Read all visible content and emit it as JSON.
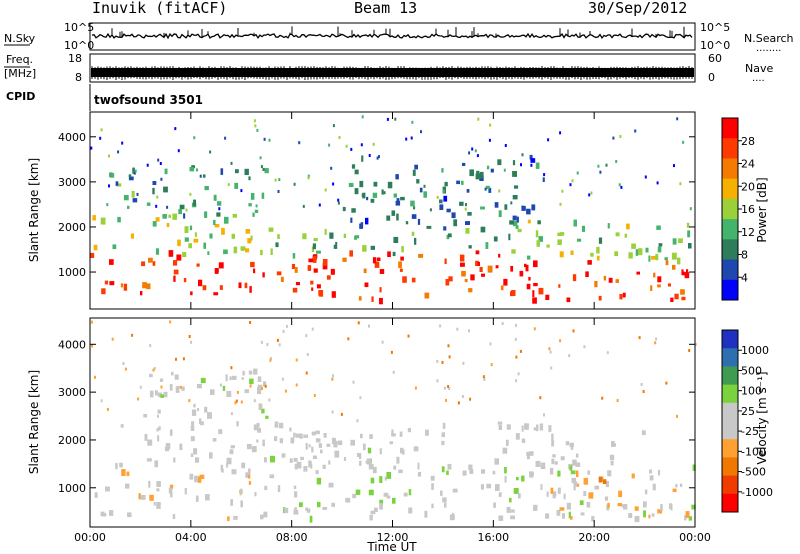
{
  "header": {
    "station": "Inuvik (fitACF)",
    "beam": "Beam 13",
    "date": "30/Sep/2012"
  },
  "noise_panel": {
    "left_label": "N.Sky",
    "right_label": "N.Search",
    "right_dots": "........",
    "top_tick": "10^5",
    "bottom_tick": "10^0"
  },
  "freq_panel": {
    "label_line1": "Freq.",
    "label_line2": "[MHz]",
    "left_ticks": [
      "18",
      "8"
    ],
    "right_ticks": [
      "60",
      "0"
    ],
    "right_label": "Nave",
    "right_dots": "...."
  },
  "cpid_panel": {
    "label": "CPID",
    "program": "twofsound 3501"
  },
  "power_panel": {
    "ylabel": "Slant Range [km]",
    "yticks": [
      "4000",
      "3000",
      "2000",
      "1000"
    ],
    "colorbar_label": "Power [dB]",
    "colorbar_ticks": [
      "28",
      "24",
      "20",
      "16",
      "12",
      "8",
      "4"
    ]
  },
  "velocity_panel": {
    "ylabel": "Slant Range [km]",
    "yticks": [
      "4000",
      "3000",
      "2000",
      "1000"
    ],
    "colorbar_label": "Velocity [m s⁻¹]",
    "colorbar_ticks": [
      "1000",
      "500",
      "100",
      "25",
      "-25",
      "-100",
      "-500",
      "-1000"
    ]
  },
  "x_axis": {
    "ticks": [
      "00:00",
      "04:00",
      "08:00",
      "12:00",
      "16:00",
      "20:00",
      "00:00"
    ],
    "label": "Time UT"
  },
  "colors": {
    "power_scale": [
      "#0000ff",
      "#1f47b0",
      "#2e7d5a",
      "#44b36b",
      "#9ad13b",
      "#f5b000",
      "#f57a00",
      "#ff3a00",
      "#ff0000"
    ],
    "velocity_scale": [
      "#ff0000",
      "#f03c00",
      "#f07800",
      "#ffa032",
      "#c8c8c8",
      "#c8c8c8",
      "#7ad23c",
      "#3f9a52",
      "#2e6fb0",
      "#2030c0"
    ]
  },
  "chart_data": {
    "type": "heatmap",
    "x_range_hours": [
      0,
      24
    ],
    "y_range_km": [
      180,
      4550
    ],
    "power_range_db": [
      0,
      32
    ],
    "velocity_range_ms": [
      -1200,
      1200
    ],
    "power_regions": [
      {
        "x": [
          0.0,
          10.0
        ],
        "y": [
          550,
          1500
        ],
        "v": 28
      },
      {
        "x": [
          10.0,
          17.5
        ],
        "y": [
          400,
          1500
        ],
        "v": 28
      },
      {
        "x": [
          17.5,
          24.0
        ],
        "y": [
          400,
          1300
        ],
        "v": 28
      },
      {
        "x": [
          0.0,
          7.0
        ],
        "y": [
          1400,
          2300
        ],
        "v": 16
      },
      {
        "x": [
          7.0,
          16.0
        ],
        "y": [
          1400,
          2000
        ],
        "v": 12
      },
      {
        "x": [
          16.0,
          24.0
        ],
        "y": [
          1300,
          2200
        ],
        "v": 14
      },
      {
        "x": [
          0.5,
          7.0
        ],
        "y": [
          2200,
          3400
        ],
        "v": 10
      },
      {
        "x": [
          10.0,
          18.0
        ],
        "y": [
          2000,
          3600
        ],
        "v": 8
      }
    ],
    "velocity_regions": [
      {
        "x": [
          0.0,
          7.0
        ],
        "y": [
          400,
          1500
        ],
        "v": -150
      },
      {
        "x": [
          7.0,
          13.0
        ],
        "y": [
          400,
          2200
        ],
        "v": 150
      },
      {
        "x": [
          13.0,
          24.0
        ],
        "y": [
          400,
          1500
        ],
        "v": 80
      },
      {
        "x": [
          1.0,
          14.0
        ],
        "y": [
          1500,
          2400
        ],
        "v": 0
      },
      {
        "x": [
          16.0,
          22.0
        ],
        "y": [
          1500,
          2400
        ],
        "v": 0
      },
      {
        "x": [
          2.0,
          7.0
        ],
        "y": [
          2400,
          3500
        ],
        "v": 100
      },
      {
        "x": [
          18.0,
          24.0
        ],
        "y": [
          400,
          1400
        ],
        "v": -300
      }
    ]
  }
}
